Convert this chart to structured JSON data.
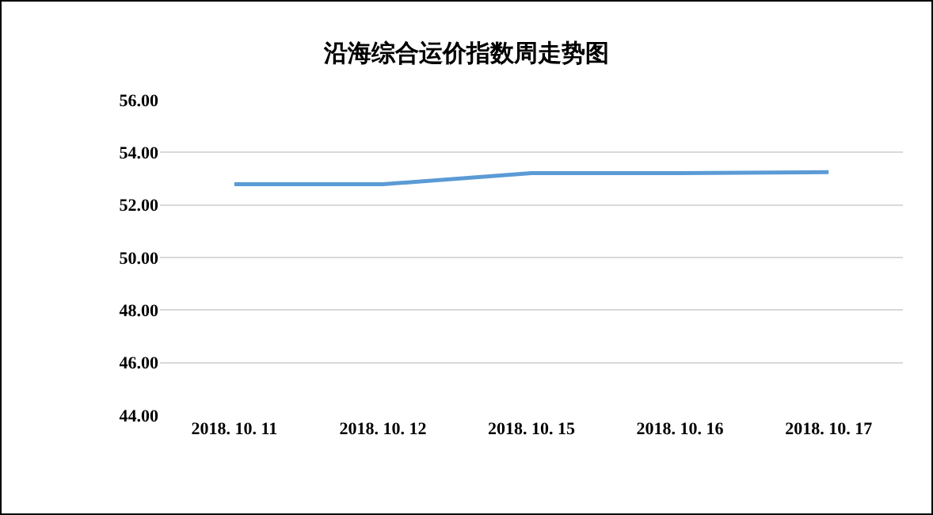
{
  "chart_data": {
    "type": "line",
    "title": "沿海综合运价指数周走势图",
    "categories": [
      "2018. 10. 11",
      "2018. 10. 12",
      "2018. 10. 15",
      "2018. 10. 16",
      "2018. 10. 17"
    ],
    "series": [
      {
        "color": "#5b9bd5",
        "values": [
          52.79,
          52.79,
          53.21,
          53.21,
          53.25
        ]
      }
    ],
    "ylim": [
      44,
      56
    ],
    "yticks": [
      {
        "value": 44,
        "label": "44.00"
      },
      {
        "value": 46,
        "label": "46.00"
      },
      {
        "value": 48,
        "label": "48.00"
      },
      {
        "value": 50,
        "label": "50.00"
      },
      {
        "value": 52,
        "label": "52.00"
      },
      {
        "value": 54,
        "label": "54.00"
      },
      {
        "value": 56,
        "label": "56.00"
      }
    ],
    "grid": "y",
    "legend": false,
    "marker": "none",
    "line_style": "solid"
  }
}
